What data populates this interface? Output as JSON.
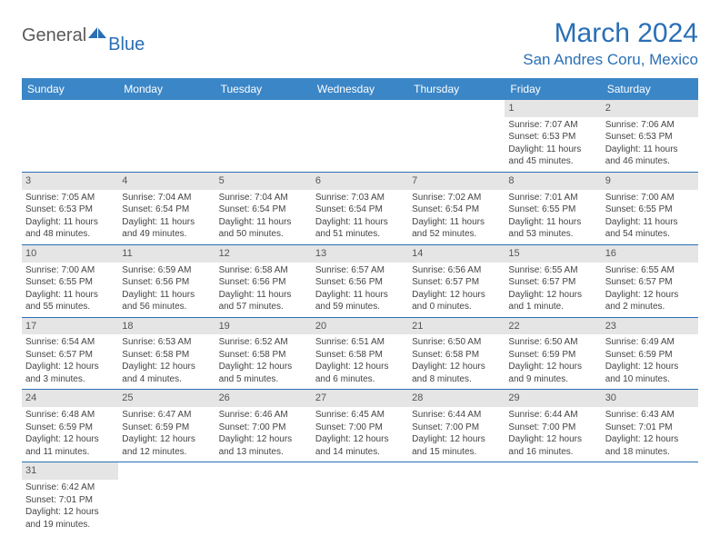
{
  "logo": {
    "general": "General",
    "blue": "Blue"
  },
  "title": "March 2024",
  "location": "San Andres Coru, Mexico",
  "colors": {
    "header_bg": "#3b86c7",
    "header_text": "#ffffff",
    "accent": "#2a6fb5",
    "daynum_bg": "#e5e5e5",
    "body_text": "#444444"
  },
  "daysOfWeek": [
    "Sunday",
    "Monday",
    "Tuesday",
    "Wednesday",
    "Thursday",
    "Friday",
    "Saturday"
  ],
  "weeks": [
    [
      null,
      null,
      null,
      null,
      null,
      {
        "n": "1",
        "sr": "Sunrise: 7:07 AM",
        "ss": "Sunset: 6:53 PM",
        "dl": "Daylight: 11 hours and 45 minutes."
      },
      {
        "n": "2",
        "sr": "Sunrise: 7:06 AM",
        "ss": "Sunset: 6:53 PM",
        "dl": "Daylight: 11 hours and 46 minutes."
      }
    ],
    [
      {
        "n": "3",
        "sr": "Sunrise: 7:05 AM",
        "ss": "Sunset: 6:53 PM",
        "dl": "Daylight: 11 hours and 48 minutes."
      },
      {
        "n": "4",
        "sr": "Sunrise: 7:04 AM",
        "ss": "Sunset: 6:54 PM",
        "dl": "Daylight: 11 hours and 49 minutes."
      },
      {
        "n": "5",
        "sr": "Sunrise: 7:04 AM",
        "ss": "Sunset: 6:54 PM",
        "dl": "Daylight: 11 hours and 50 minutes."
      },
      {
        "n": "6",
        "sr": "Sunrise: 7:03 AM",
        "ss": "Sunset: 6:54 PM",
        "dl": "Daylight: 11 hours and 51 minutes."
      },
      {
        "n": "7",
        "sr": "Sunrise: 7:02 AM",
        "ss": "Sunset: 6:54 PM",
        "dl": "Daylight: 11 hours and 52 minutes."
      },
      {
        "n": "8",
        "sr": "Sunrise: 7:01 AM",
        "ss": "Sunset: 6:55 PM",
        "dl": "Daylight: 11 hours and 53 minutes."
      },
      {
        "n": "9",
        "sr": "Sunrise: 7:00 AM",
        "ss": "Sunset: 6:55 PM",
        "dl": "Daylight: 11 hours and 54 minutes."
      }
    ],
    [
      {
        "n": "10",
        "sr": "Sunrise: 7:00 AM",
        "ss": "Sunset: 6:55 PM",
        "dl": "Daylight: 11 hours and 55 minutes."
      },
      {
        "n": "11",
        "sr": "Sunrise: 6:59 AM",
        "ss": "Sunset: 6:56 PM",
        "dl": "Daylight: 11 hours and 56 minutes."
      },
      {
        "n": "12",
        "sr": "Sunrise: 6:58 AM",
        "ss": "Sunset: 6:56 PM",
        "dl": "Daylight: 11 hours and 57 minutes."
      },
      {
        "n": "13",
        "sr": "Sunrise: 6:57 AM",
        "ss": "Sunset: 6:56 PM",
        "dl": "Daylight: 11 hours and 59 minutes."
      },
      {
        "n": "14",
        "sr": "Sunrise: 6:56 AM",
        "ss": "Sunset: 6:57 PM",
        "dl": "Daylight: 12 hours and 0 minutes."
      },
      {
        "n": "15",
        "sr": "Sunrise: 6:55 AM",
        "ss": "Sunset: 6:57 PM",
        "dl": "Daylight: 12 hours and 1 minute."
      },
      {
        "n": "16",
        "sr": "Sunrise: 6:55 AM",
        "ss": "Sunset: 6:57 PM",
        "dl": "Daylight: 12 hours and 2 minutes."
      }
    ],
    [
      {
        "n": "17",
        "sr": "Sunrise: 6:54 AM",
        "ss": "Sunset: 6:57 PM",
        "dl": "Daylight: 12 hours and 3 minutes."
      },
      {
        "n": "18",
        "sr": "Sunrise: 6:53 AM",
        "ss": "Sunset: 6:58 PM",
        "dl": "Daylight: 12 hours and 4 minutes."
      },
      {
        "n": "19",
        "sr": "Sunrise: 6:52 AM",
        "ss": "Sunset: 6:58 PM",
        "dl": "Daylight: 12 hours and 5 minutes."
      },
      {
        "n": "20",
        "sr": "Sunrise: 6:51 AM",
        "ss": "Sunset: 6:58 PM",
        "dl": "Daylight: 12 hours and 6 minutes."
      },
      {
        "n": "21",
        "sr": "Sunrise: 6:50 AM",
        "ss": "Sunset: 6:58 PM",
        "dl": "Daylight: 12 hours and 8 minutes."
      },
      {
        "n": "22",
        "sr": "Sunrise: 6:50 AM",
        "ss": "Sunset: 6:59 PM",
        "dl": "Daylight: 12 hours and 9 minutes."
      },
      {
        "n": "23",
        "sr": "Sunrise: 6:49 AM",
        "ss": "Sunset: 6:59 PM",
        "dl": "Daylight: 12 hours and 10 minutes."
      }
    ],
    [
      {
        "n": "24",
        "sr": "Sunrise: 6:48 AM",
        "ss": "Sunset: 6:59 PM",
        "dl": "Daylight: 12 hours and 11 minutes."
      },
      {
        "n": "25",
        "sr": "Sunrise: 6:47 AM",
        "ss": "Sunset: 6:59 PM",
        "dl": "Daylight: 12 hours and 12 minutes."
      },
      {
        "n": "26",
        "sr": "Sunrise: 6:46 AM",
        "ss": "Sunset: 7:00 PM",
        "dl": "Daylight: 12 hours and 13 minutes."
      },
      {
        "n": "27",
        "sr": "Sunrise: 6:45 AM",
        "ss": "Sunset: 7:00 PM",
        "dl": "Daylight: 12 hours and 14 minutes."
      },
      {
        "n": "28",
        "sr": "Sunrise: 6:44 AM",
        "ss": "Sunset: 7:00 PM",
        "dl": "Daylight: 12 hours and 15 minutes."
      },
      {
        "n": "29",
        "sr": "Sunrise: 6:44 AM",
        "ss": "Sunset: 7:00 PM",
        "dl": "Daylight: 12 hours and 16 minutes."
      },
      {
        "n": "30",
        "sr": "Sunrise: 6:43 AM",
        "ss": "Sunset: 7:01 PM",
        "dl": "Daylight: 12 hours and 18 minutes."
      }
    ],
    [
      {
        "n": "31",
        "sr": "Sunrise: 6:42 AM",
        "ss": "Sunset: 7:01 PM",
        "dl": "Daylight: 12 hours and 19 minutes."
      },
      null,
      null,
      null,
      null,
      null,
      null
    ]
  ]
}
